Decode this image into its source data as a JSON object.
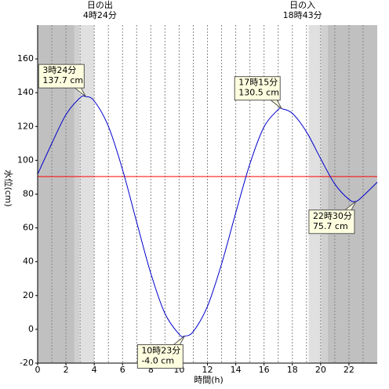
{
  "chart_data": {
    "type": "line",
    "xlabel": "時間(h)",
    "ylabel": "水位(cm)",
    "x": [
      0,
      1,
      2,
      3,
      3.4,
      4,
      5,
      6,
      7,
      8,
      9,
      10,
      10.383,
      11,
      12,
      13,
      14,
      15,
      16,
      17,
      17.25,
      18,
      19,
      20,
      21,
      22,
      22.5,
      23,
      24
    ],
    "series": [
      {
        "name": "水位",
        "color": "#0000cc",
        "values": [
          91.8,
          110,
          127,
          137,
          137.7,
          135.1,
          120.1,
          94.5,
          63.4,
          33.0,
          9.3,
          -2.9,
          -4.0,
          -1.3,
          13.6,
          38.7,
          68.9,
          97.9,
          119.8,
          130.0,
          130.5,
          127.8,
          116.8,
          101.0,
          86.0,
          76.9,
          75.7,
          78.9,
          87.0
        ]
      }
    ],
    "xlim": [
      0,
      24
    ],
    "ylim": [
      -20,
      180
    ],
    "xticks": [
      0,
      2,
      4,
      6,
      8,
      10,
      12,
      14,
      16,
      18,
      20,
      22
    ],
    "yticks": [
      -20,
      0,
      20,
      40,
      60,
      80,
      100,
      120,
      140,
      160
    ],
    "xgrid": [
      1,
      2,
      3,
      4,
      5,
      6,
      7,
      8,
      9,
      10,
      11,
      12,
      13,
      14,
      15,
      16,
      17,
      18,
      19,
      20,
      21,
      22,
      23
    ],
    "reference_line": {
      "value": 90.4,
      "color": "#ff0000"
    },
    "bands": [
      {
        "start": 0,
        "end": 2.6,
        "color": "#c0c0c0"
      },
      {
        "start": 2.6,
        "end": 2.95,
        "color": "#d0d0d0"
      },
      {
        "start": 2.95,
        "end": 4.0,
        "color": "#e0e0e0"
      },
      {
        "start": 19.15,
        "end": 20.05,
        "color": "#e0e0e0"
      },
      {
        "start": 20.05,
        "end": 20.5,
        "color": "#d0d0d0"
      },
      {
        "start": 20.5,
        "end": 24,
        "color": "#c0c0c0"
      }
    ],
    "sun": [
      {
        "label": "日の出",
        "time": "4時24分",
        "x": 4.4
      },
      {
        "label": "日の入",
        "time": "18時43分",
        "x": 18.717
      }
    ],
    "annotations": [
      {
        "time": "3時24分",
        "level": "137.7 cm",
        "x": 3.4,
        "y": 137.7,
        "position": "above"
      },
      {
        "time": "10時23分",
        "level": "-4.0 cm",
        "x": 10.383,
        "y": -4.0,
        "position": "below"
      },
      {
        "time": "17時15分",
        "level": "130.5 cm",
        "x": 17.25,
        "y": 130.5,
        "position": "above"
      },
      {
        "time": "22時30分",
        "level": "75.7 cm",
        "x": 22.5,
        "y": 75.7,
        "position": "below"
      }
    ]
  }
}
